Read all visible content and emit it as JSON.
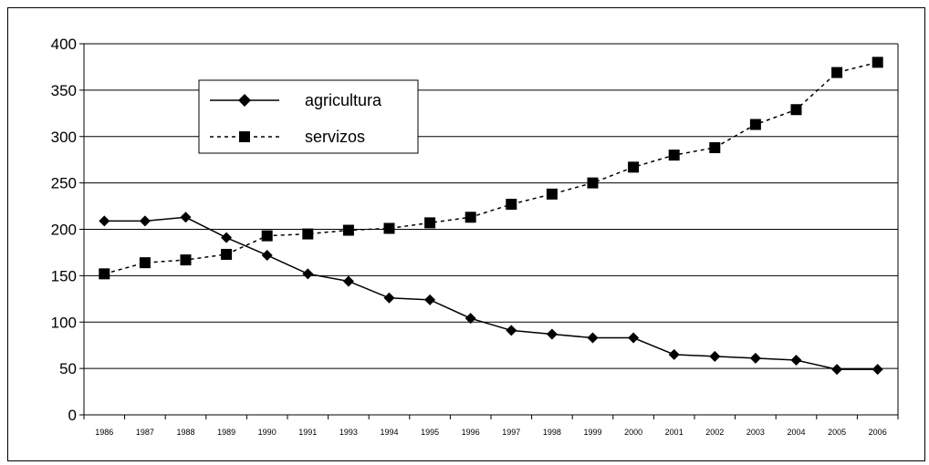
{
  "chart_data": {
    "type": "line",
    "categories": [
      "1986",
      "1987",
      "1988",
      "1989",
      "1990",
      "1991",
      "1993",
      "1994",
      "1995",
      "1996",
      "1997",
      "1998",
      "1999",
      "2000",
      "2001",
      "2002",
      "2003",
      "2004",
      "2005",
      "2006"
    ],
    "series": [
      {
        "name": "agricultura",
        "marker": "diamond",
        "line_style": "solid",
        "color": "#000000",
        "values": [
          209,
          209,
          213,
          191,
          172,
          152,
          144,
          126,
          124,
          104,
          91,
          87,
          83,
          83,
          65,
          63,
          61,
          59,
          49,
          49
        ]
      },
      {
        "name": "servizos",
        "marker": "square",
        "line_style": "dashed",
        "color": "#000000",
        "values": [
          152,
          164,
          167,
          173,
          193,
          195,
          199,
          201,
          207,
          213,
          227,
          238,
          250,
          267,
          280,
          288,
          313,
          329,
          369,
          380
        ]
      }
    ],
    "y_ticks": [
      "0",
      "50",
      "100",
      "150",
      "200",
      "250",
      "300",
      "350",
      "400"
    ],
    "ylim": [
      0,
      400
    ],
    "grid": "horizontal",
    "legend_position": "upper-left"
  }
}
